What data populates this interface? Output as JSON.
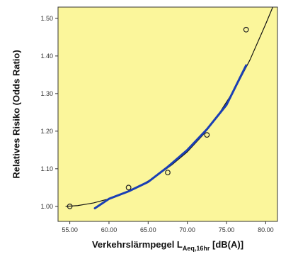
{
  "chart_data": {
    "type": "scatter",
    "xlabel": {
      "main": "Verkehrslärmpegel L",
      "subscript": "Aeq,16hr",
      "suffix": " [dB(A)]"
    },
    "ylabel": "Relatives Risiko (Odds Ratio)",
    "xlim": [
      53.5,
      81.5
    ],
    "ylim": [
      0.96,
      1.53
    ],
    "xticks": [
      "55.00",
      "60.00",
      "65.00",
      "70.00",
      "75.00",
      "80.00"
    ],
    "yticks": [
      "1.00",
      "1.10",
      "1.20",
      "1.30",
      "1.40",
      "1.50"
    ],
    "grid": false,
    "background_color": "#fbf69b",
    "series": [
      {
        "kind": "points",
        "marker": "open-circle",
        "color": "#222222",
        "x": [
          55.0,
          62.5,
          67.5,
          72.5,
          77.5
        ],
        "y": [
          1.0,
          1.05,
          1.09,
          1.19,
          1.47
        ]
      },
      {
        "kind": "fit-curve",
        "color": "#111111",
        "x": [
          54.5,
          56.0,
          58.0,
          60.0,
          62.0,
          64.0,
          66.0,
          68.0,
          70.0,
          72.0,
          74.0,
          76.0,
          78.0,
          80.0,
          81.0
        ],
        "y": [
          1.0,
          1.002,
          1.009,
          1.02,
          1.035,
          1.055,
          1.08,
          1.11,
          1.145,
          1.19,
          1.245,
          1.31,
          1.39,
          1.485,
          1.535
        ]
      },
      {
        "kind": "fit-curve",
        "color": "#1a3fb5",
        "x": [
          58.2,
          60.0,
          62.5,
          65.0,
          67.5,
          70.0,
          72.5,
          75.0,
          77.5
        ],
        "y": [
          0.995,
          1.02,
          1.04,
          1.065,
          1.105,
          1.15,
          1.205,
          1.27,
          1.375
        ]
      }
    ]
  }
}
